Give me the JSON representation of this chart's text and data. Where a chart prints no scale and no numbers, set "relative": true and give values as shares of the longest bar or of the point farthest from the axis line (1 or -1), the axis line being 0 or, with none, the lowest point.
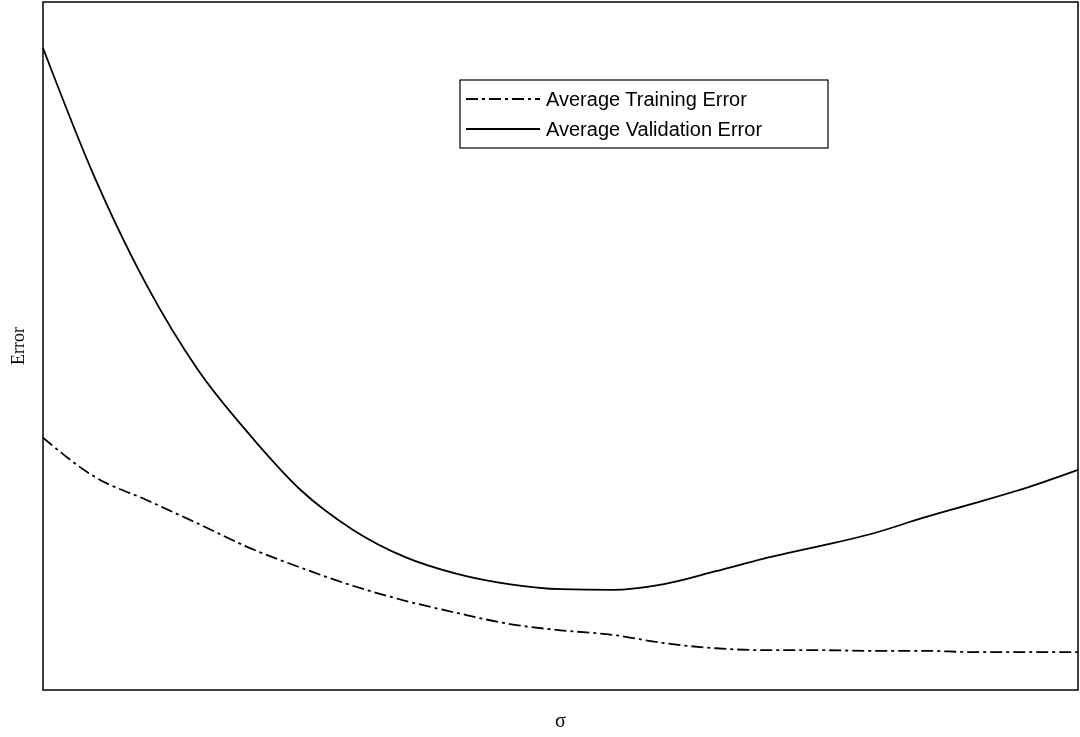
{
  "chart_data": {
    "type": "line",
    "xlabel": "σ",
    "ylabel": "Error",
    "relative": true,
    "legend": "top right",
    "marker": "none",
    "categories": [
      null,
      null,
      null,
      null,
      null,
      null,
      null,
      null,
      null,
      null,
      null,
      null,
      null,
      null,
      null,
      null,
      null,
      null,
      null,
      null,
      null
    ],
    "series": [
      {
        "name": "Average Training Error",
        "color": "#000000",
        "line_style": "dashed",
        "values": [
          0.393,
          0.332,
          0.296,
          0.259,
          0.221,
          0.19,
          0.162,
          0.139,
          0.12,
          0.103,
          0.093,
          0.086,
          0.073,
          0.065,
          0.062,
          0.062,
          0.061,
          0.061,
          0.059,
          0.059,
          0.059
        ]
      },
      {
        "name": "Average Validation Error",
        "color": "#000000",
        "line_style": "solid",
        "values": [
          1.0,
          0.798,
          0.631,
          0.498,
          0.397,
          0.31,
          0.249,
          0.207,
          0.181,
          0.165,
          0.157,
          0.156,
          0.165,
          0.185,
          0.206,
          0.224,
          0.243,
          0.268,
          0.291,
          0.315,
          0.343
        ]
      }
    ]
  }
}
